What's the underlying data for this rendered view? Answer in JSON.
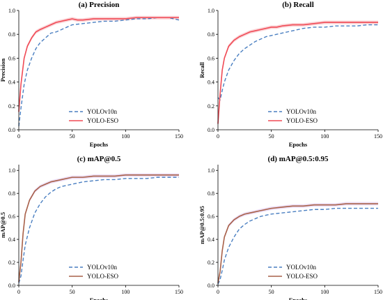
{
  "colors": {
    "yolov10n": "#4a7fc1",
    "yolo_eso_pr": "#f04a55",
    "yolo_eso_map": "#a86048",
    "band_pr": "#f7b8bc",
    "band_map": "#e0c8f0",
    "axis": "#000000"
  },
  "chart_data": [
    {
      "type": "line",
      "title": "(a) Precision",
      "xlabel": "Epochs",
      "ylabel": "Precision",
      "xlim": [
        0,
        150
      ],
      "ylim": [
        0,
        1.0
      ],
      "xticks": [
        0,
        50,
        100,
        150
      ],
      "yticks": [
        0.0,
        0.2,
        0.4,
        0.6,
        0.8,
        1.0
      ],
      "ytick_labels": [
        "0.0",
        "0.2",
        "0.4",
        "0.6",
        "0.8",
        "1.0"
      ],
      "legend_position": "lower-center",
      "shaded_band": true,
      "series": [
        {
          "name": "YOLOv10n",
          "style": "dashed",
          "color_key": "yolov10n",
          "x": [
            0,
            2,
            5,
            8,
            12,
            16,
            20,
            25,
            30,
            35,
            40,
            45,
            50,
            60,
            70,
            80,
            90,
            100,
            110,
            120,
            130,
            140,
            150
          ],
          "values": [
            0.03,
            0.18,
            0.38,
            0.5,
            0.6,
            0.68,
            0.73,
            0.77,
            0.81,
            0.82,
            0.84,
            0.86,
            0.88,
            0.89,
            0.9,
            0.91,
            0.91,
            0.92,
            0.93,
            0.93,
            0.94,
            0.94,
            0.92
          ]
        },
        {
          "name": "YOLO-ESO",
          "style": "solid",
          "color_key": "yolo_eso_pr",
          "x": [
            0,
            2,
            5,
            8,
            12,
            16,
            20,
            25,
            30,
            35,
            40,
            45,
            50,
            55,
            60,
            70,
            80,
            90,
            100,
            110,
            120,
            130,
            140,
            150
          ],
          "values": [
            0.15,
            0.38,
            0.6,
            0.7,
            0.77,
            0.82,
            0.84,
            0.86,
            0.88,
            0.9,
            0.91,
            0.92,
            0.93,
            0.92,
            0.92,
            0.93,
            0.93,
            0.93,
            0.93,
            0.94,
            0.94,
            0.94,
            0.94,
            0.94
          ]
        }
      ]
    },
    {
      "type": "line",
      "title": "(b) Recall",
      "xlabel": "Epochs",
      "ylabel": "Recall",
      "xlim": [
        0,
        150
      ],
      "ylim": [
        0,
        1.0
      ],
      "xticks": [
        0,
        50,
        100,
        150
      ],
      "yticks": [
        0.0,
        0.2,
        0.4,
        0.6,
        0.8,
        1.0
      ],
      "ytick_labels": [
        "0.0",
        "0.2",
        "0.4",
        "0.6",
        "0.8",
        "1.0"
      ],
      "legend_position": "lower-center",
      "shaded_band": true,
      "series": [
        {
          "name": "YOLOv10n",
          "style": "dashed",
          "color_key": "yolov10n",
          "x": [
            0,
            2,
            4,
            6,
            10,
            15,
            20,
            25,
            30,
            35,
            40,
            45,
            50,
            60,
            70,
            80,
            90,
            100,
            110,
            120,
            130,
            140,
            150
          ],
          "values": [
            0.27,
            0.25,
            0.33,
            0.4,
            0.5,
            0.58,
            0.64,
            0.68,
            0.71,
            0.74,
            0.76,
            0.78,
            0.79,
            0.81,
            0.83,
            0.85,
            0.86,
            0.86,
            0.87,
            0.87,
            0.87,
            0.88,
            0.88
          ]
        },
        {
          "name": "YOLO-ESO",
          "style": "solid",
          "color_key": "yolo_eso_pr",
          "x": [
            0,
            2,
            4,
            6,
            10,
            15,
            20,
            25,
            30,
            35,
            40,
            45,
            50,
            55,
            60,
            70,
            80,
            90,
            100,
            110,
            120,
            130,
            140,
            150
          ],
          "values": [
            0.05,
            0.3,
            0.5,
            0.6,
            0.7,
            0.75,
            0.78,
            0.8,
            0.82,
            0.83,
            0.84,
            0.85,
            0.86,
            0.86,
            0.87,
            0.88,
            0.88,
            0.89,
            0.9,
            0.9,
            0.9,
            0.9,
            0.9,
            0.9
          ]
        }
      ]
    },
    {
      "type": "line",
      "title": "(c) mAP@0.5",
      "xlabel": "Epochs",
      "ylabel": "mAP@0.5",
      "xlim": [
        0,
        150
      ],
      "ylim": [
        0,
        1.05
      ],
      "xticks": [
        0,
        50,
        100,
        150
      ],
      "yticks": [
        0.0,
        0.2,
        0.4,
        0.6,
        0.8,
        1.0
      ],
      "ytick_labels": [
        "0.0",
        "0.2",
        "0.4",
        "0.6",
        "0.8",
        "1.0"
      ],
      "legend_position": "lower-center",
      "shaded_band": true,
      "series": [
        {
          "name": "YOLOv10n",
          "style": "dashed",
          "color_key": "yolov10n",
          "x": [
            0,
            2,
            4,
            6,
            10,
            15,
            20,
            25,
            30,
            35,
            40,
            45,
            50,
            60,
            70,
            80,
            90,
            100,
            110,
            120,
            130,
            140,
            150
          ],
          "values": [
            0.02,
            0.08,
            0.22,
            0.35,
            0.5,
            0.63,
            0.71,
            0.77,
            0.81,
            0.84,
            0.86,
            0.87,
            0.88,
            0.9,
            0.91,
            0.92,
            0.92,
            0.93,
            0.93,
            0.93,
            0.94,
            0.94,
            0.94
          ]
        },
        {
          "name": "YOLO-ESO",
          "style": "solid",
          "color_key": "yolo_eso_map",
          "x": [
            0,
            2,
            4,
            6,
            10,
            15,
            20,
            25,
            30,
            35,
            40,
            45,
            50,
            60,
            70,
            80,
            90,
            100,
            110,
            120,
            130,
            140,
            150
          ],
          "values": [
            0.03,
            0.2,
            0.45,
            0.62,
            0.74,
            0.82,
            0.86,
            0.88,
            0.9,
            0.91,
            0.92,
            0.93,
            0.94,
            0.94,
            0.95,
            0.95,
            0.95,
            0.96,
            0.96,
            0.96,
            0.96,
            0.96,
            0.96
          ]
        }
      ]
    },
    {
      "type": "line",
      "title": "(d) mAP@0.5:0.95",
      "xlabel": "Epochs",
      "ylabel": "mAP@0.5:0.95",
      "xlim": [
        0,
        150
      ],
      "ylim": [
        0,
        1.05
      ],
      "xticks": [
        0,
        50,
        100,
        150
      ],
      "yticks": [
        0.0,
        0.2,
        0.4,
        0.6,
        0.8,
        1.0
      ],
      "ytick_labels": [
        "0.0",
        "0.2",
        "0.4",
        "0.6",
        "0.8",
        "1.0"
      ],
      "legend_position": "lower-center",
      "shaded_band": true,
      "series": [
        {
          "name": "YOLOv10n",
          "style": "dashed",
          "color_key": "yolov10n",
          "x": [
            0,
            2,
            4,
            6,
            10,
            15,
            20,
            25,
            30,
            35,
            40,
            45,
            50,
            60,
            70,
            80,
            90,
            100,
            110,
            120,
            130,
            140,
            150
          ],
          "values": [
            0.01,
            0.05,
            0.13,
            0.22,
            0.33,
            0.42,
            0.49,
            0.53,
            0.56,
            0.58,
            0.6,
            0.61,
            0.62,
            0.63,
            0.64,
            0.65,
            0.66,
            0.66,
            0.67,
            0.67,
            0.67,
            0.67,
            0.67
          ]
        },
        {
          "name": "YOLO-ESO",
          "style": "solid",
          "color_key": "yolo_eso_map",
          "x": [
            0,
            2,
            4,
            6,
            10,
            15,
            20,
            25,
            30,
            35,
            40,
            45,
            50,
            60,
            70,
            80,
            90,
            100,
            110,
            120,
            130,
            140,
            150
          ],
          "values": [
            0.02,
            0.12,
            0.3,
            0.42,
            0.52,
            0.57,
            0.6,
            0.62,
            0.63,
            0.64,
            0.65,
            0.66,
            0.67,
            0.68,
            0.69,
            0.69,
            0.7,
            0.7,
            0.7,
            0.71,
            0.71,
            0.71,
            0.71
          ]
        }
      ]
    }
  ]
}
